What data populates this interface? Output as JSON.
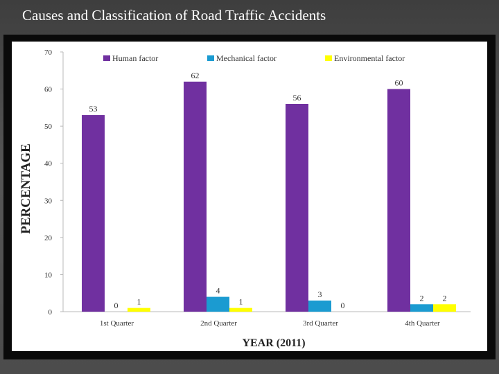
{
  "slide": {
    "title": "Causes and Classification of Road Traffic Accidents"
  },
  "chart_data": {
    "type": "bar",
    "title": "",
    "xlabel": "YEAR (2011)",
    "ylabel": "PERCENTAGE",
    "ylim": [
      0,
      70
    ],
    "yticks": [
      0,
      10,
      20,
      30,
      40,
      50,
      60,
      70
    ],
    "grid": false,
    "legend_position": "top",
    "categories": [
      "1st Quarter",
      "2nd Quarter",
      "3rd Quarter",
      "4th Quarter"
    ],
    "series": [
      {
        "name": "Human factor",
        "color": "#7030a0",
        "values": [
          53,
          62,
          56,
          60
        ]
      },
      {
        "name": "Mechanical factor",
        "color": "#1b9bd1",
        "values": [
          0,
          4,
          3,
          2
        ]
      },
      {
        "name": "Environmental factor",
        "color": "#ffff00",
        "values": [
          1,
          1,
          0,
          2
        ]
      }
    ]
  }
}
